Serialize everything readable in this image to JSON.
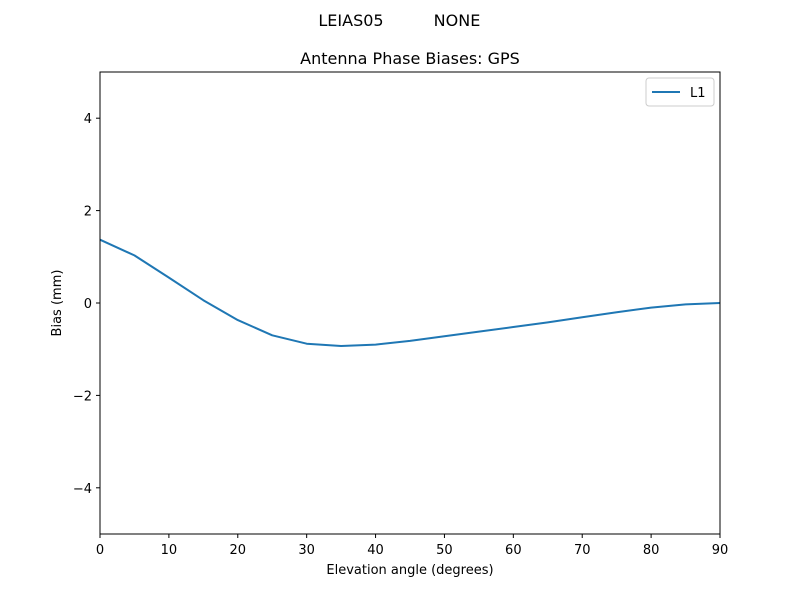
{
  "figure": {
    "suptitle_left": "LEIAS05",
    "suptitle_right": "NONE"
  },
  "chart_data": {
    "type": "line",
    "title": "Antenna Phase Biases: GPS",
    "xlabel": "Elevation angle (degrees)",
    "ylabel": "Bias (mm)",
    "xlim": [
      0,
      90
    ],
    "ylim": [
      -5,
      5
    ],
    "xticks": [
      0,
      10,
      20,
      30,
      40,
      50,
      60,
      70,
      80,
      90
    ],
    "xtick_labels": [
      "0",
      "10",
      "20",
      "30",
      "40",
      "50",
      "60",
      "70",
      "80",
      "90"
    ],
    "yticks": [
      -4,
      -2,
      0,
      2,
      4
    ],
    "ytick_labels": [
      "−4",
      "−2",
      "0",
      "2",
      "4"
    ],
    "grid": false,
    "legend_position": "top-right",
    "series": [
      {
        "name": "L1",
        "color": "#1f77b4",
        "x": [
          0,
          5,
          10,
          15,
          20,
          25,
          30,
          35,
          40,
          45,
          50,
          55,
          60,
          65,
          70,
          75,
          80,
          85,
          90
        ],
        "values": [
          1.37,
          1.03,
          0.55,
          0.06,
          -0.37,
          -0.7,
          -0.88,
          -0.93,
          -0.9,
          -0.82,
          -0.72,
          -0.62,
          -0.52,
          -0.42,
          -0.31,
          -0.2,
          -0.1,
          -0.03,
          0.0
        ]
      }
    ]
  }
}
